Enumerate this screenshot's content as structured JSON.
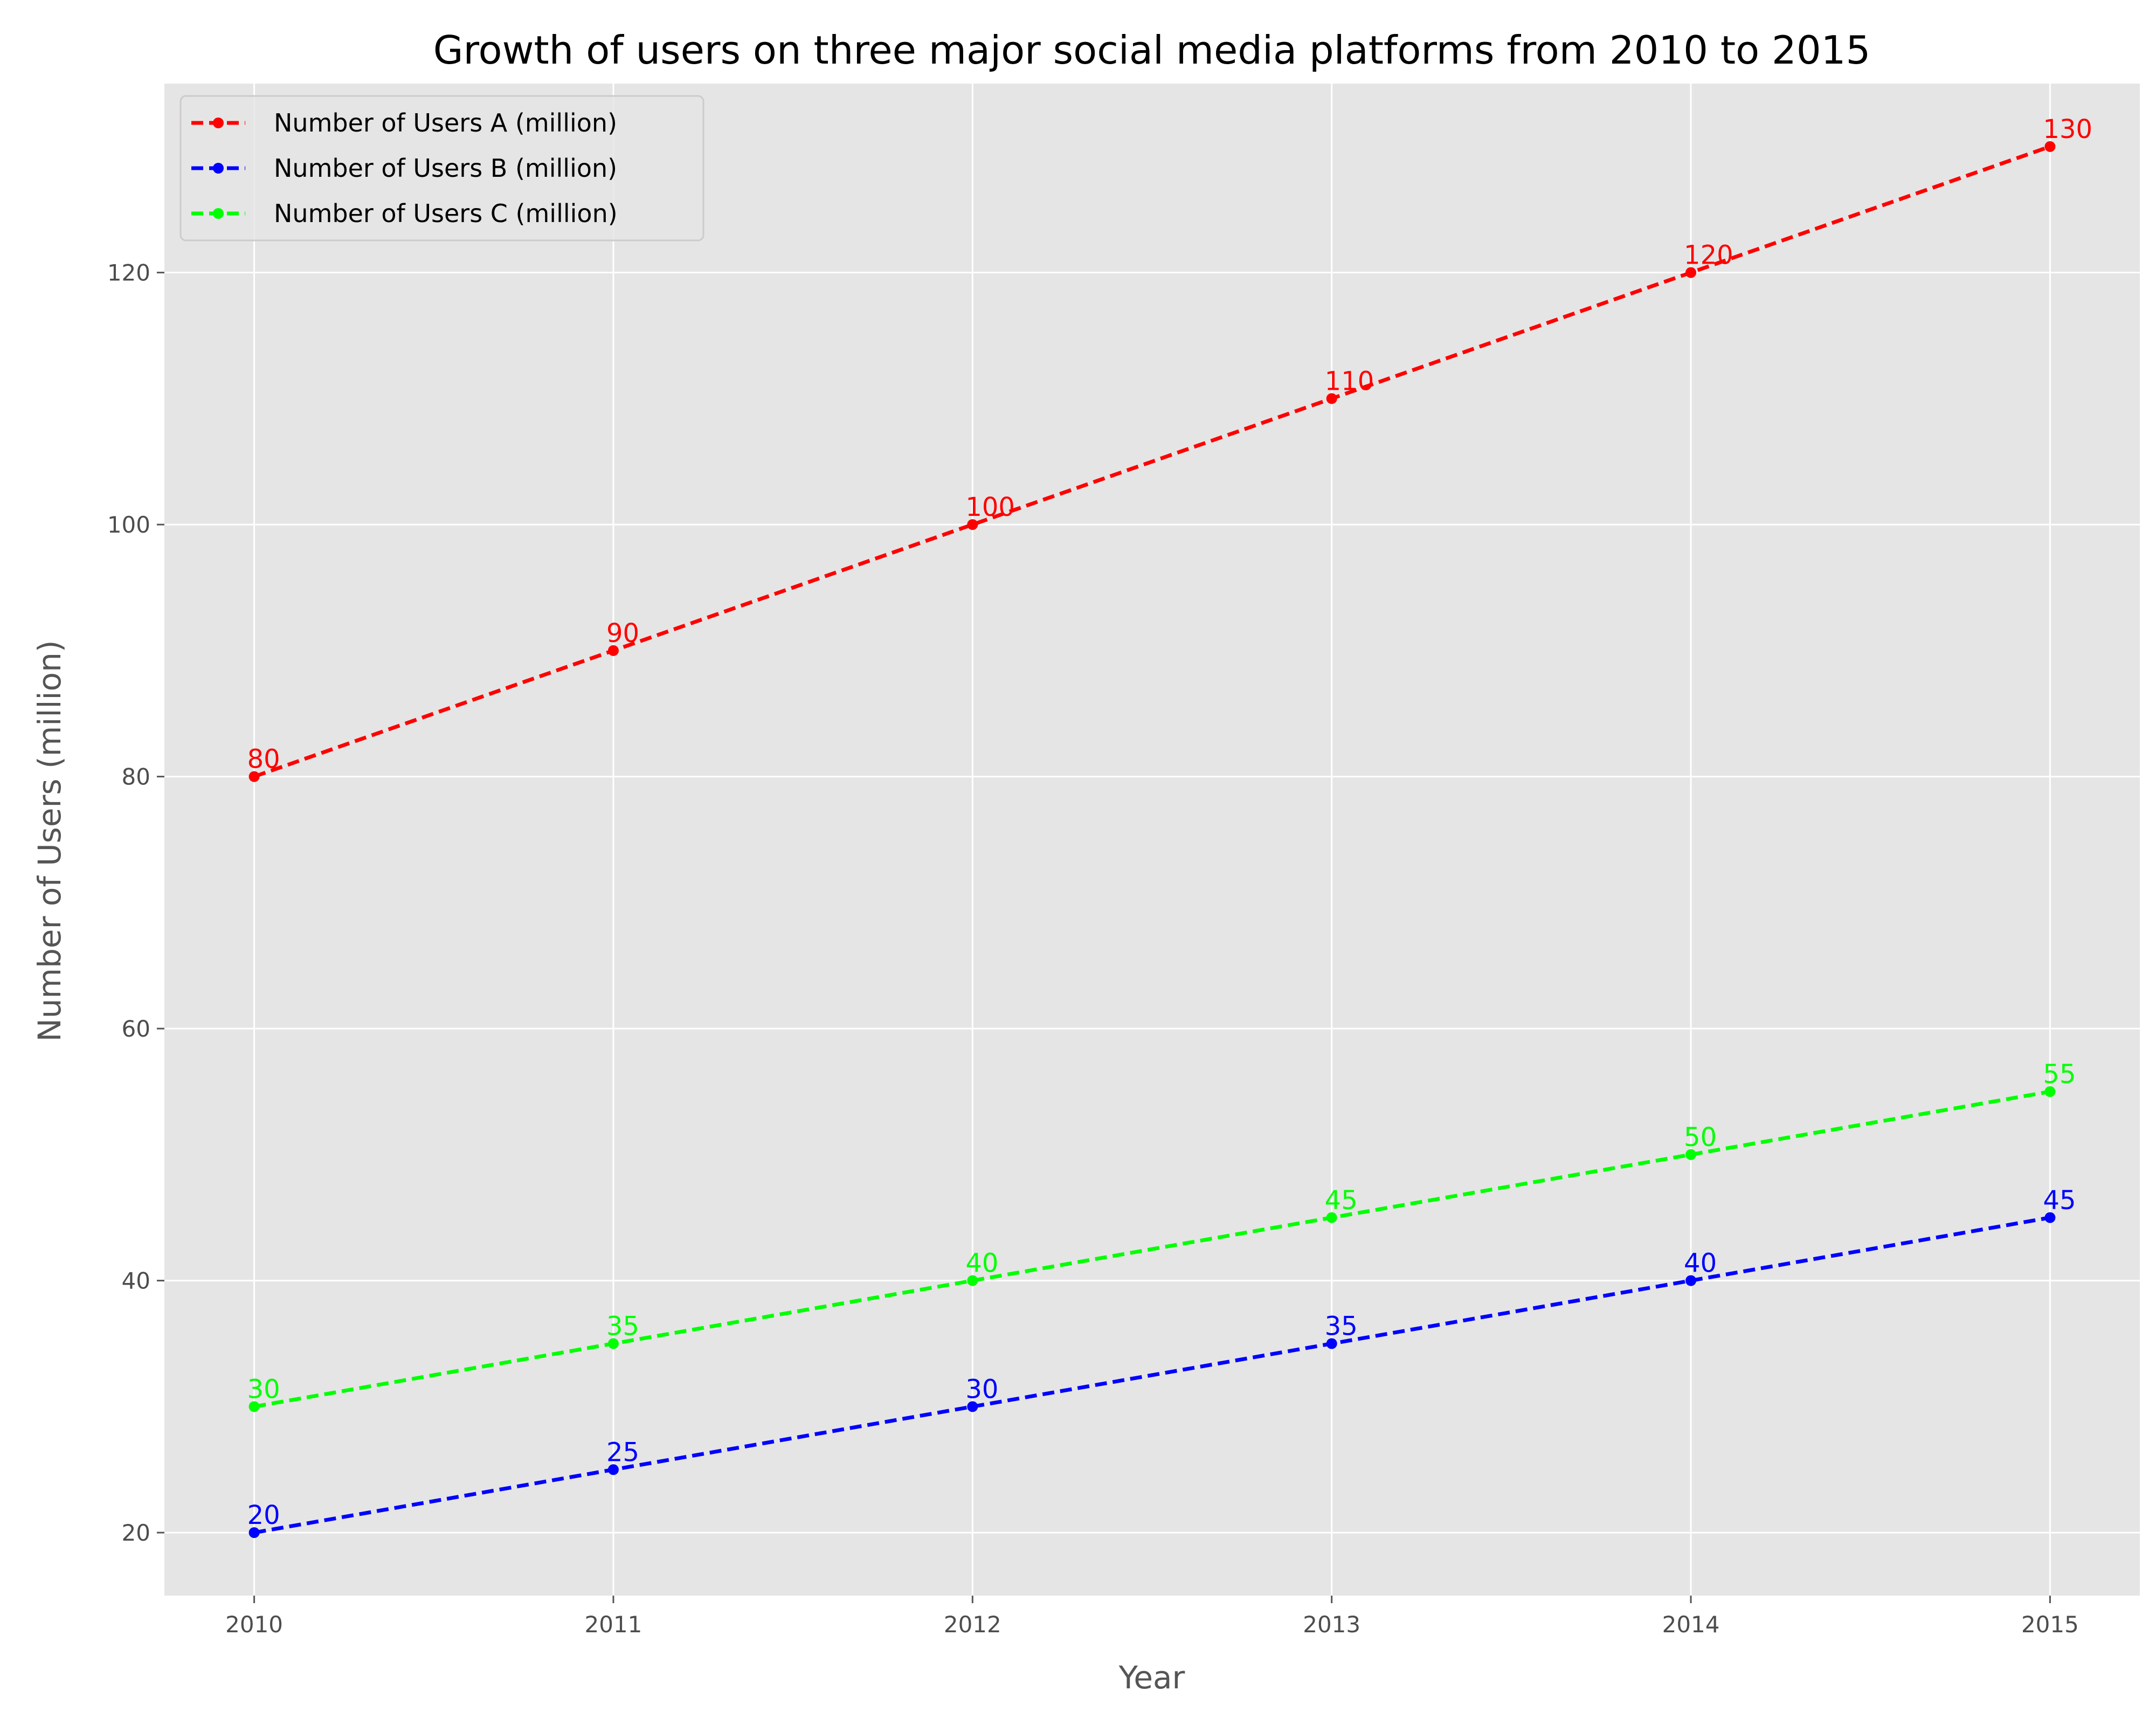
{
  "chart_data": {
    "type": "line",
    "title": "Growth of users on three major social media platforms from 2010 to 2015",
    "xlabel": "Year",
    "ylabel": "Number of Users (million)",
    "x": [
      2010,
      2011,
      2012,
      2013,
      2014,
      2015
    ],
    "x_tick_labels": [
      "2010",
      "2011",
      "2012",
      "2013",
      "2014",
      "2015"
    ],
    "xlim": [
      2009.75,
      2015.25
    ],
    "ylim": [
      15,
      135
    ],
    "y_ticks": [
      20,
      40,
      60,
      80,
      100,
      120
    ],
    "y_tick_labels": [
      "20",
      "40",
      "60",
      "80",
      "100",
      "120"
    ],
    "grid": true,
    "legend_position": "top-left",
    "line_style": "dashed",
    "marker": "circle",
    "series": [
      {
        "name": "Number of Users A (million)",
        "color": "#ff0000",
        "values": [
          80,
          90,
          100,
          110,
          120,
          130
        ],
        "labels": [
          "80",
          "90",
          "100",
          "110",
          "120",
          "130"
        ]
      },
      {
        "name": "Number of Users B (million)",
        "color": "#0000ff",
        "values": [
          20,
          25,
          30,
          35,
          40,
          45
        ],
        "labels": [
          "20",
          "25",
          "30",
          "35",
          "40",
          "45"
        ]
      },
      {
        "name": "Number of Users C (million)",
        "color": "#00ff00",
        "values": [
          30,
          35,
          40,
          45,
          50,
          55
        ],
        "labels": [
          "30",
          "35",
          "40",
          "45",
          "50",
          "55"
        ]
      }
    ]
  },
  "colors": {
    "plot_background": "#e5e5e5",
    "grid": "#ffffff",
    "figure_background": "#ffffff"
  }
}
